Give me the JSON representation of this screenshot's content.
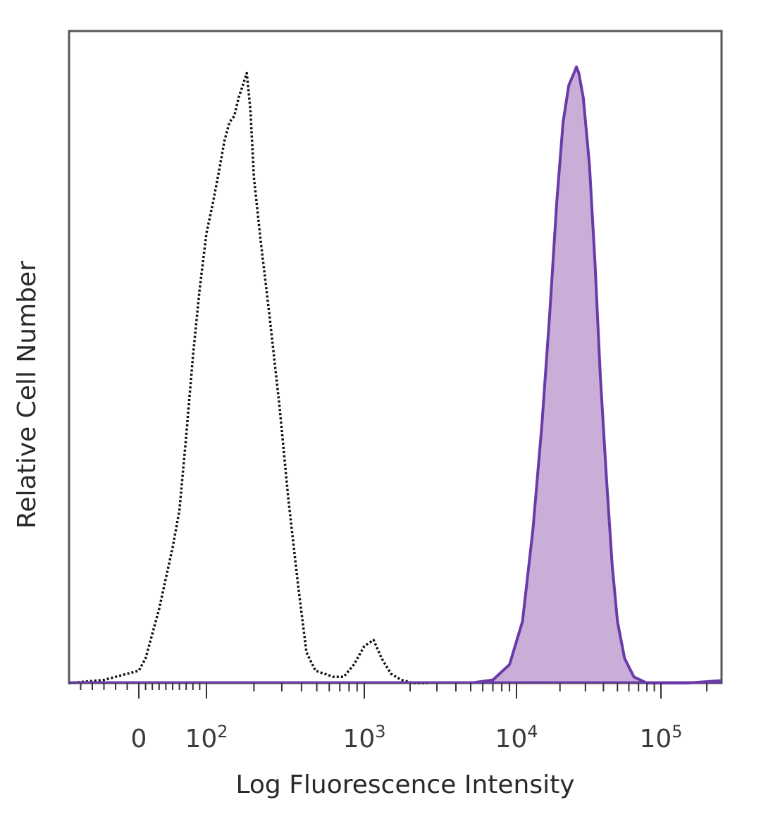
{
  "chart_data": {
    "type": "area",
    "xlabel": "Log Fluorescence Intensity",
    "ylabel": "Relative Cell Number",
    "x_scale": "biexponential",
    "xlim": [
      -60,
      250000
    ],
    "ylim": [
      0,
      1
    ],
    "grid": false,
    "legend": "none",
    "x_ticks": [
      {
        "value": 0,
        "base": "0",
        "exp": ""
      },
      {
        "value": 100,
        "base": "10",
        "exp": "2"
      },
      {
        "value": 1000,
        "base": "10",
        "exp": "3"
      },
      {
        "value": 10000,
        "base": "10",
        "exp": "4"
      },
      {
        "value": 100000,
        "base": "10",
        "exp": "5"
      }
    ],
    "series": [
      {
        "style": "dotted-outline",
        "color": "#111111",
        "x": [
          -60,
          -30,
          0,
          10,
          20,
          30,
          40,
          50,
          60,
          70,
          80,
          90,
          100,
          110,
          120,
          130,
          140,
          150,
          160,
          170,
          180,
          190,
          200,
          220,
          250,
          290,
          330,
          380,
          430,
          490,
          560,
          640,
          740,
          860,
          1000,
          1150,
          1300,
          1500,
          1750,
          2100,
          2600
        ],
        "y": [
          0.0,
          0.005,
          0.02,
          0.04,
          0.08,
          0.12,
          0.17,
          0.22,
          0.28,
          0.4,
          0.53,
          0.64,
          0.73,
          0.78,
          0.83,
          0.88,
          0.91,
          0.92,
          0.95,
          0.97,
          0.99,
          0.93,
          0.82,
          0.72,
          0.6,
          0.45,
          0.3,
          0.16,
          0.05,
          0.02,
          0.015,
          0.01,
          0.01,
          0.03,
          0.06,
          0.07,
          0.04,
          0.015,
          0.005,
          0.0,
          0.0
        ]
      },
      {
        "style": "filled",
        "color": "#6a3aa8",
        "fill": "#c9aed8",
        "x": [
          5000,
          7000,
          9000,
          11000,
          13000,
          15000,
          17000,
          19000,
          21000,
          23000,
          25000,
          26000,
          27000,
          29000,
          32000,
          35000,
          38000,
          42000,
          46000,
          50000,
          56000,
          65000,
          80000,
          100000,
          150000,
          250000
        ],
        "y": [
          0.0,
          0.005,
          0.03,
          0.1,
          0.25,
          0.42,
          0.6,
          0.78,
          0.91,
          0.97,
          0.99,
          1.0,
          0.99,
          0.95,
          0.84,
          0.68,
          0.5,
          0.33,
          0.19,
          0.1,
          0.04,
          0.01,
          0.0,
          0.0,
          0.0,
          0.004
        ]
      }
    ]
  }
}
